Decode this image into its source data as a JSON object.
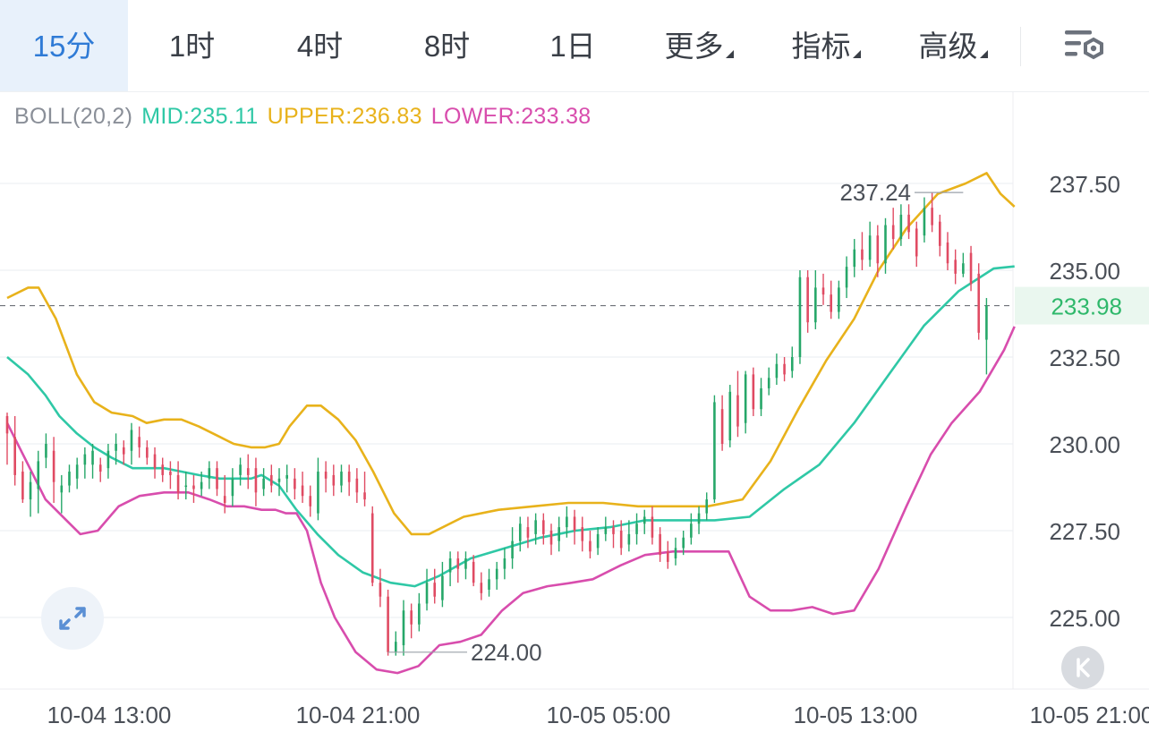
{
  "toolbar": {
    "tabs": [
      {
        "label": "15分",
        "active": true
      },
      {
        "label": "1时"
      },
      {
        "label": "4时"
      },
      {
        "label": "8时"
      },
      {
        "label": "1日"
      },
      {
        "label": "更多",
        "dropdown": true
      },
      {
        "label": "指标",
        "dropdown": true
      },
      {
        "label": "高级",
        "dropdown": true
      }
    ],
    "settings_icon": "chart-settings-icon"
  },
  "indicator": {
    "name": "BOLL(20,2)",
    "mid": "MID:235.11",
    "upper": "UPPER:236.83",
    "lower": "LOWER:233.38"
  },
  "colors": {
    "up": "#26a769",
    "down": "#e04b63",
    "mid": "#2fc8a6",
    "upper": "#e8b21b",
    "lower": "#d84dad",
    "price_tag": "#2fb86b",
    "axis_text": "#4a4f57"
  },
  "chart_data": {
    "type": "candlestick",
    "indicator": "BOLL(20,2)",
    "y_ticks": [
      "237.50",
      "235.00",
      "232.50",
      "230.00",
      "227.50",
      "225.00"
    ],
    "ylim": [
      223.2,
      238.6
    ],
    "last_price": "233.98",
    "x_ticks": [
      "10-04 13:00",
      "10-04 21:00",
      "10-05 05:00",
      "10-05 13:00",
      "10-05 21:00"
    ],
    "max_label": "237.24",
    "min_label": "224.00",
    "candles": [
      [
        230.8,
        230.3,
        229.4,
        230.9
      ],
      [
        230.2,
        229.1,
        228.8,
        230.8
      ],
      [
        229.2,
        228.4,
        228.3,
        229.5
      ],
      [
        228.4,
        228.9,
        227.9,
        229.2
      ],
      [
        228.7,
        229.5,
        228.0,
        229.8
      ],
      [
        229.6,
        230.0,
        229.3,
        230.3
      ],
      [
        229.8,
        228.9,
        228.3,
        230.2
      ],
      [
        228.6,
        228.8,
        228.0,
        229.1
      ],
      [
        228.8,
        229.2,
        228.6,
        229.4
      ],
      [
        229.0,
        229.4,
        228.7,
        229.6
      ],
      [
        229.4,
        229.7,
        229.0,
        229.9
      ],
      [
        229.4,
        229.8,
        229.0,
        230.0
      ],
      [
        229.4,
        229.2,
        228.9,
        229.6
      ],
      [
        229.3,
        229.8,
        229.0,
        230.0
      ],
      [
        229.8,
        230.0,
        229.4,
        230.3
      ],
      [
        229.9,
        229.7,
        229.4,
        230.1
      ],
      [
        229.8,
        230.4,
        229.4,
        230.6
      ],
      [
        230.2,
        229.9,
        229.6,
        230.5
      ],
      [
        229.9,
        229.6,
        229.4,
        230.1
      ],
      [
        229.7,
        229.3,
        229.0,
        229.9
      ],
      [
        229.4,
        229.1,
        228.9,
        229.6
      ],
      [
        229.2,
        229.1,
        228.7,
        229.5
      ],
      [
        229.1,
        228.6,
        228.4,
        229.5
      ],
      [
        228.8,
        228.8,
        228.4,
        229.2
      ],
      [
        228.8,
        228.7,
        228.3,
        229.1
      ],
      [
        228.7,
        228.9,
        228.5,
        229.2
      ],
      [
        229.0,
        229.3,
        228.7,
        229.5
      ],
      [
        229.3,
        228.7,
        228.5,
        229.5
      ],
      [
        228.5,
        228.3,
        228.0,
        229.1
      ],
      [
        228.5,
        229.0,
        228.2,
        229.3
      ],
      [
        229.1,
        229.4,
        228.8,
        229.6
      ],
      [
        229.3,
        229.1,
        228.7,
        229.7
      ],
      [
        229.3,
        228.6,
        228.2,
        229.6
      ],
      [
        228.7,
        229.0,
        228.5,
        229.3
      ],
      [
        229.1,
        228.8,
        228.6,
        229.4
      ],
      [
        228.9,
        229.0,
        228.5,
        229.3
      ],
      [
        229.0,
        229.1,
        228.6,
        229.4
      ],
      [
        229.0,
        228.7,
        228.4,
        229.3
      ],
      [
        228.8,
        228.5,
        228.3,
        229.2
      ],
      [
        228.5,
        228.2,
        227.9,
        228.8
      ],
      [
        228.0,
        229.2,
        227.8,
        229.6
      ],
      [
        229.2,
        229.0,
        228.6,
        229.5
      ],
      [
        229.1,
        228.8,
        228.5,
        229.4
      ],
      [
        228.8,
        229.2,
        228.6,
        229.4
      ],
      [
        229.2,
        228.9,
        228.5,
        229.4
      ],
      [
        229.0,
        228.6,
        228.3,
        229.3
      ],
      [
        228.6,
        228.4,
        228.2,
        229.2
      ],
      [
        228.0,
        226.0,
        225.9,
        228.2
      ],
      [
        226.0,
        225.6,
        225.3,
        226.4
      ],
      [
        225.6,
        224.0,
        223.9,
        225.8
      ],
      [
        224.0,
        224.3,
        223.9,
        224.6
      ],
      [
        224.2,
        225.2,
        223.9,
        225.5
      ],
      [
        225.2,
        224.8,
        224.4,
        225.4
      ],
      [
        224.8,
        225.4,
        224.6,
        225.7
      ],
      [
        225.4,
        226.0,
        225.2,
        226.4
      ],
      [
        226.0,
        225.6,
        225.4,
        226.4
      ],
      [
        225.5,
        226.2,
        225.3,
        226.6
      ],
      [
        226.3,
        226.7,
        225.9,
        226.9
      ],
      [
        226.7,
        226.4,
        226.0,
        226.9
      ],
      [
        226.4,
        226.7,
        226.1,
        226.9
      ],
      [
        226.6,
        226.0,
        225.9,
        226.8
      ],
      [
        226.0,
        225.7,
        225.5,
        226.3
      ],
      [
        225.8,
        226.1,
        225.6,
        226.4
      ],
      [
        226.1,
        226.4,
        225.8,
        226.6
      ],
      [
        226.4,
        226.7,
        226.1,
        227.0
      ],
      [
        226.7,
        227.2,
        226.4,
        227.6
      ],
      [
        227.2,
        227.7,
        226.9,
        227.9
      ],
      [
        227.6,
        227.3,
        227.0,
        227.9
      ],
      [
        227.4,
        227.8,
        227.1,
        228.0
      ],
      [
        227.8,
        227.4,
        227.1,
        228.0
      ],
      [
        227.5,
        227.1,
        226.8,
        227.7
      ],
      [
        227.2,
        227.6,
        226.9,
        227.9
      ],
      [
        227.6,
        227.9,
        227.3,
        228.2
      ],
      [
        227.9,
        227.5,
        227.1,
        228.1
      ],
      [
        227.6,
        227.2,
        226.9,
        227.9
      ],
      [
        227.2,
        226.9,
        226.7,
        227.5
      ],
      [
        227.0,
        227.4,
        226.8,
        227.6
      ],
      [
        227.4,
        227.6,
        227.2,
        227.9
      ],
      [
        227.6,
        227.4,
        227.0,
        227.8
      ],
      [
        227.5,
        227.0,
        226.8,
        227.8
      ],
      [
        227.1,
        227.4,
        226.9,
        227.8
      ],
      [
        227.4,
        227.7,
        227.1,
        228.0
      ],
      [
        227.7,
        227.9,
        227.4,
        228.1
      ],
      [
        227.9,
        227.3,
        227.1,
        228.2
      ],
      [
        227.4,
        226.8,
        226.6,
        227.6
      ],
      [
        226.9,
        226.6,
        226.4,
        227.2
      ],
      [
        226.7,
        227.0,
        226.5,
        227.3
      ],
      [
        227.0,
        227.3,
        226.8,
        227.5
      ],
      [
        227.3,
        227.7,
        227.1,
        228.0
      ],
      [
        227.7,
        228.0,
        227.4,
        228.2
      ],
      [
        228.0,
        228.4,
        227.8,
        228.6
      ],
      [
        228.4,
        231.2,
        228.3,
        231.4
      ],
      [
        231.0,
        230.0,
        229.8,
        231.4
      ],
      [
        230.1,
        231.5,
        229.9,
        231.7
      ],
      [
        231.4,
        230.5,
        230.2,
        232.1
      ],
      [
        230.6,
        232.0,
        230.3,
        232.1
      ],
      [
        232.0,
        231.0,
        230.8,
        232.2
      ],
      [
        231.0,
        231.6,
        230.8,
        231.9
      ],
      [
        231.6,
        231.9,
        231.4,
        232.2
      ],
      [
        231.9,
        232.3,
        231.7,
        232.6
      ],
      [
        232.3,
        232.0,
        231.8,
        232.5
      ],
      [
        232.1,
        232.5,
        231.9,
        232.8
      ],
      [
        232.5,
        234.8,
        232.3,
        235.0
      ],
      [
        234.8,
        233.5,
        233.2,
        235.0
      ],
      [
        233.5,
        234.5,
        233.3,
        235.0
      ],
      [
        234.5,
        234.3,
        234.0,
        234.9
      ],
      [
        234.3,
        233.8,
        233.6,
        234.7
      ],
      [
        233.8,
        234.5,
        233.6,
        234.7
      ],
      [
        234.5,
        235.1,
        234.2,
        235.4
      ],
      [
        235.1,
        235.6,
        234.8,
        235.9
      ],
      [
        235.6,
        235.3,
        235.0,
        236.1
      ],
      [
        235.3,
        236.0,
        235.1,
        236.4
      ],
      [
        236.0,
        235.2,
        234.8,
        236.3
      ],
      [
        235.2,
        236.3,
        234.9,
        236.5
      ],
      [
        236.3,
        235.9,
        235.6,
        236.8
      ],
      [
        235.9,
        236.6,
        235.7,
        236.9
      ],
      [
        236.6,
        236.1,
        235.9,
        236.9
      ],
      [
        236.2,
        235.4,
        235.1,
        236.4
      ],
      [
        236.0,
        236.8,
        235.8,
        237.1
      ],
      [
        236.8,
        236.3,
        236.1,
        237.24
      ],
      [
        236.4,
        235.7,
        235.4,
        236.6
      ],
      [
        235.8,
        235.2,
        235.0,
        236.1
      ],
      [
        235.3,
        234.9,
        234.6,
        235.6
      ],
      [
        234.9,
        235.2,
        234.8,
        235.5
      ],
      [
        235.5,
        234.6,
        234.4,
        235.7
      ],
      [
        234.9,
        233.2,
        233.0,
        235.2
      ],
      [
        233.0,
        233.98,
        232.0,
        234.2
      ]
    ],
    "boll_mid": [
      [
        0,
        232.5
      ],
      [
        6,
        232.0
      ],
      [
        11,
        231.4
      ],
      [
        15,
        230.8
      ],
      [
        20,
        230.3
      ],
      [
        25,
        229.9
      ],
      [
        30,
        229.6
      ],
      [
        36,
        229.3
      ],
      [
        40,
        229.3
      ],
      [
        45,
        229.3
      ],
      [
        50,
        229.2
      ],
      [
        55,
        229.1
      ],
      [
        61,
        229.0
      ],
      [
        65,
        229.0
      ],
      [
        70,
        229.0
      ],
      [
        73,
        229.1
      ],
      [
        78,
        228.8
      ],
      [
        83,
        228.1
      ],
      [
        89,
        227.4
      ],
      [
        95,
        226.8
      ],
      [
        102,
        226.3
      ],
      [
        110,
        226.0
      ],
      [
        117,
        225.9
      ],
      [
        124,
        226.2
      ],
      [
        133,
        226.7
      ],
      [
        143,
        227.0
      ],
      [
        153,
        227.3
      ],
      [
        163,
        227.5
      ],
      [
        173,
        227.6
      ],
      [
        183,
        227.8
      ],
      [
        193,
        227.8
      ],
      [
        203,
        227.8
      ],
      [
        213,
        227.9
      ],
      [
        223,
        228.7
      ],
      [
        233,
        229.4
      ],
      [
        243,
        230.6
      ],
      [
        253,
        232.0
      ],
      [
        263,
        233.4
      ],
      [
        273,
        234.4
      ],
      [
        283,
        235.05
      ],
      [
        289,
        235.11
      ]
    ],
    "boll_upper": [
      [
        0,
        234.2
      ],
      [
        6,
        234.5
      ],
      [
        9,
        234.5
      ],
      [
        14,
        233.6
      ],
      [
        20,
        232.0
      ],
      [
        25,
        231.2
      ],
      [
        30,
        230.9
      ],
      [
        36,
        230.8
      ],
      [
        40,
        230.6
      ],
      [
        45,
        230.7
      ],
      [
        50,
        230.7
      ],
      [
        55,
        230.5
      ],
      [
        61,
        230.2
      ],
      [
        65,
        230.0
      ],
      [
        70,
        229.9
      ],
      [
        74,
        229.9
      ],
      [
        78,
        230.0
      ],
      [
        81,
        230.5
      ],
      [
        86,
        231.1
      ],
      [
        90,
        231.1
      ],
      [
        95,
        230.7
      ],
      [
        100,
        230.1
      ],
      [
        105,
        229.2
      ],
      [
        111,
        228.0
      ],
      [
        116,
        227.4
      ],
      [
        121,
        227.4
      ],
      [
        131,
        227.9
      ],
      [
        141,
        228.1
      ],
      [
        151,
        228.2
      ],
      [
        161,
        228.3
      ],
      [
        171,
        228.3
      ],
      [
        181,
        228.2
      ],
      [
        191,
        228.2
      ],
      [
        201,
        228.2
      ],
      [
        211,
        228.4
      ],
      [
        219,
        229.5
      ],
      [
        227,
        231.0
      ],
      [
        235,
        232.4
      ],
      [
        243,
        233.6
      ],
      [
        250,
        235.0
      ],
      [
        258,
        236.2
      ],
      [
        267,
        237.2
      ],
      [
        275,
        237.5
      ],
      [
        281,
        237.8
      ],
      [
        285,
        237.2
      ],
      [
        289,
        236.83
      ]
    ],
    "boll_lower": [
      [
        0,
        230.6
      ],
      [
        5,
        229.6
      ],
      [
        11,
        228.4
      ],
      [
        17,
        227.8
      ],
      [
        21,
        227.4
      ],
      [
        26,
        227.5
      ],
      [
        32,
        228.2
      ],
      [
        38,
        228.5
      ],
      [
        45,
        228.6
      ],
      [
        52,
        228.6
      ],
      [
        58,
        228.4
      ],
      [
        63,
        228.2
      ],
      [
        68,
        228.2
      ],
      [
        73,
        228.1
      ],
      [
        77,
        228.1
      ],
      [
        80,
        228.0
      ],
      [
        83,
        228.0
      ],
      [
        86,
        227.5
      ],
      [
        90,
        226.0
      ],
      [
        94,
        225.0
      ],
      [
        100,
        224.0
      ],
      [
        106,
        223.5
      ],
      [
        112,
        223.4
      ],
      [
        118,
        223.6
      ],
      [
        124,
        224.2
      ],
      [
        130,
        224.3
      ],
      [
        136,
        224.5
      ],
      [
        142,
        225.2
      ],
      [
        148,
        225.7
      ],
      [
        155,
        225.9
      ],
      [
        162,
        226.0
      ],
      [
        168,
        226.1
      ],
      [
        176,
        226.5
      ],
      [
        183,
        226.8
      ],
      [
        191,
        226.9
      ],
      [
        199,
        226.9
      ],
      [
        207,
        226.9
      ],
      [
        213,
        225.6
      ],
      [
        219,
        225.2
      ],
      [
        225,
        225.2
      ],
      [
        231,
        225.3
      ],
      [
        237,
        225.1
      ],
      [
        243,
        225.2
      ],
      [
        250,
        226.4
      ],
      [
        258,
        228.2
      ],
      [
        265,
        229.7
      ],
      [
        271,
        230.6
      ],
      [
        279,
        231.5
      ],
      [
        286,
        232.7
      ],
      [
        289,
        233.38
      ]
    ]
  }
}
